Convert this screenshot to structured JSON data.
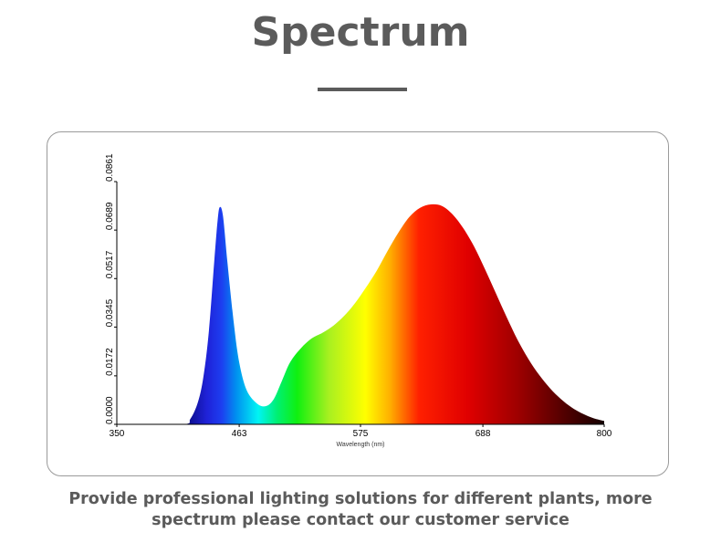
{
  "page": {
    "title": "Spectrum",
    "caption_line1": "Provide professional lighting solutions for different plants, more",
    "caption_line2": "spectrum please contact our customer service"
  },
  "colors": {
    "heading": "#5b5b5b",
    "axis": "#000000"
  },
  "chart_data": {
    "type": "area",
    "xlabel": "Wavelength (nm)",
    "ylabel": "",
    "xlim": [
      350,
      800
    ],
    "ylim": [
      0,
      0.0861
    ],
    "xticks": [
      "350",
      "463",
      "575",
      "688",
      "800"
    ],
    "yticks": [
      "0.0000",
      "0.0172",
      "0.0345",
      "0.0517",
      "0.0689",
      "0.0861"
    ],
    "fill": "visible-spectrum color gradient",
    "grid": false,
    "x": [
      350,
      410,
      418,
      425,
      430,
      435,
      440,
      443,
      445,
      448,
      452,
      458,
      463,
      470,
      480,
      488,
      495,
      502,
      510,
      520,
      530,
      540,
      550,
      560,
      570,
      580,
      590,
      600,
      610,
      620,
      630,
      640,
      650,
      660,
      670,
      680,
      690,
      700,
      710,
      720,
      730,
      740,
      750,
      760,
      770,
      780,
      790,
      800
    ],
    "y": [
      0,
      0,
      0.002,
      0.008,
      0.017,
      0.033,
      0.058,
      0.072,
      0.077,
      0.074,
      0.058,
      0.036,
      0.022,
      0.012,
      0.0072,
      0.0065,
      0.009,
      0.015,
      0.022,
      0.027,
      0.0305,
      0.0325,
      0.035,
      0.0385,
      0.043,
      0.0485,
      0.0545,
      0.0615,
      0.068,
      0.0735,
      0.0768,
      0.078,
      0.0775,
      0.0745,
      0.0695,
      0.063,
      0.055,
      0.0465,
      0.038,
      0.03,
      0.0232,
      0.0175,
      0.0128,
      0.009,
      0.006,
      0.0038,
      0.0022,
      0.0012
    ]
  }
}
